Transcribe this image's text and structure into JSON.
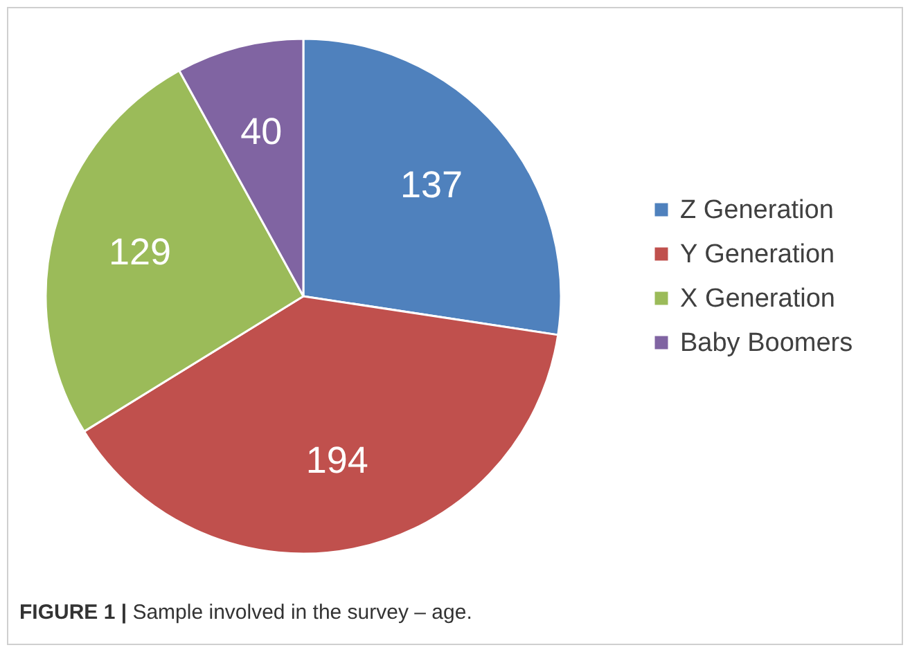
{
  "chart_data": {
    "type": "pie",
    "categories": [
      "Z Generation",
      "Y Generation",
      "X Generation",
      "Baby Boomers"
    ],
    "values": [
      137,
      194,
      129,
      40
    ],
    "colors": [
      "#4f81bd",
      "#c0504d",
      "#9bbb59",
      "#8064a2"
    ],
    "data_labels": true,
    "legend": "right",
    "annotations": [
      "FIGURE 1 | Sample involved in the survey – age."
    ]
  }
}
